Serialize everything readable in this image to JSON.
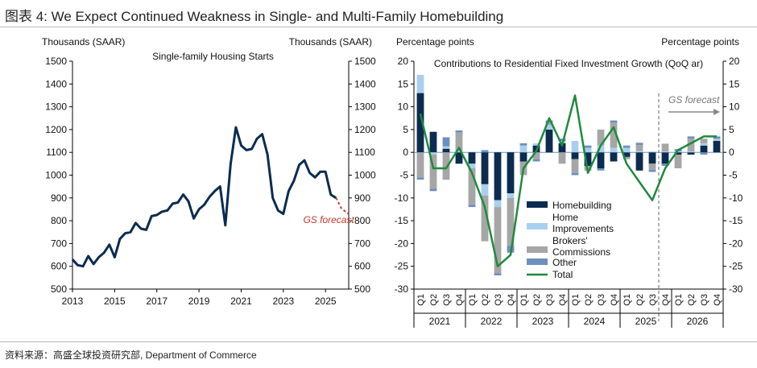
{
  "page": {
    "title": "图表 4: We Expect Continued Weakness in Single- and Multi-Family Homebuilding",
    "source": "资料来源：高盛全球投资研究部, Department of Commerce"
  },
  "chart_data": [
    {
      "type": "line",
      "title": "Single-family Housing Starts",
      "ylabel_left": "Thousands (SAAR)",
      "ylabel_right": "Thousands (SAAR)",
      "ylim": [
        500,
        1500
      ],
      "yticks": [
        "500",
        "600",
        "700",
        "800",
        "900",
        "1000",
        "1100",
        "1200",
        "1300",
        "1400",
        "1500"
      ],
      "xlim": [
        2013,
        2026.1
      ],
      "xticks": [
        "2013",
        "2015",
        "2017",
        "2019",
        "2021",
        "2023",
        "2025"
      ],
      "grid": false,
      "series": [
        {
          "name": "Single-family Housing Starts",
          "color": "#0b2c4f",
          "x": [
            2013,
            2013.25,
            2013.5,
            2013.75,
            2014,
            2014.25,
            2014.5,
            2014.75,
            2015,
            2015.25,
            2015.5,
            2015.75,
            2016,
            2016.25,
            2016.5,
            2016.75,
            2017,
            2017.25,
            2017.5,
            2017.75,
            2018,
            2018.25,
            2018.5,
            2018.75,
            2019,
            2019.25,
            2019.5,
            2019.75,
            2020,
            2020.25,
            2020.5,
            2020.75,
            2021,
            2021.25,
            2021.5,
            2021.75,
            2022,
            2022.25,
            2022.5,
            2022.75,
            2023,
            2023.25,
            2023.5,
            2023.75,
            2024,
            2024.25,
            2024.5,
            2024.75,
            2025,
            2025.25,
            2025.5
          ],
          "values": [
            630,
            605,
            600,
            645,
            610,
            640,
            660,
            695,
            640,
            720,
            745,
            750,
            790,
            765,
            760,
            820,
            825,
            840,
            845,
            875,
            880,
            915,
            885,
            810,
            850,
            870,
            905,
            930,
            950,
            780,
            1050,
            1210,
            1130,
            1110,
            1115,
            1160,
            1180,
            1090,
            900,
            845,
            830,
            930,
            975,
            1045,
            1065,
            1010,
            990,
            1015,
            1015,
            915,
            900
          ]
        },
        {
          "name": "GS forecast",
          "color": "#c0392b",
          "dashed": true,
          "x": [
            2025.5,
            2025.75,
            2026,
            2026.1
          ],
          "values": [
            900,
            855,
            835,
            830
          ]
        }
      ],
      "annotations": [
        "GS forecast"
      ]
    },
    {
      "type": "stacked-bar",
      "title": "Contributions to Residential Fixed Investment Growth (QoQ ar)",
      "ylabel_left": "Percentage points",
      "ylabel_right": "Percentage points",
      "ylim": [
        -30,
        20
      ],
      "yticks": [
        "-30",
        "-25",
        "-20",
        "-15",
        "-10",
        "-5",
        "0",
        "5",
        "10",
        "15",
        "20"
      ],
      "quarter_labels": [
        "Q1",
        "Q2",
        "Q3",
        "Q4"
      ],
      "year_labels": [
        "2021",
        "2022",
        "2023",
        "2024",
        "2025",
        "2026"
      ],
      "forecast_label": "GS forecast",
      "legend": {
        "placement": "bottom-center",
        "items": [
          {
            "key": "homebuilding",
            "label": "Homebuilding",
            "color": "#0b2c4f",
            "type": "bar"
          },
          {
            "key": "improvements",
            "label_lines": [
              "Home",
              "Improvements"
            ],
            "color": "#a9cfee",
            "type": "bar"
          },
          {
            "key": "brokers",
            "label_lines": [
              "Brokers'",
              "Commissions"
            ],
            "color": "#a6a6a6",
            "type": "bar"
          },
          {
            "key": "other",
            "label": "Other",
            "color": "#6d8fbf",
            "type": "bar"
          },
          {
            "key": "total",
            "label": "Total",
            "color": "#1f8a3e",
            "type": "line"
          }
        ]
      },
      "series": [
        {
          "name": "Homebuilding",
          "values": [
            13,
            4.5,
            0.8,
            -2.5,
            -2.5,
            -7,
            -10.5,
            -9,
            -2,
            1.5,
            5,
            2,
            -1.5,
            -3,
            -3.5,
            -2,
            -1,
            -4,
            -2.5,
            -2.5,
            -0.5,
            -0.5,
            1.5,
            2.5
          ]
        },
        {
          "name": "Home Improvements",
          "values": [
            4,
            -0.5,
            0.5,
            0.3,
            -1,
            -2.5,
            -1.5,
            -1,
            1.5,
            0.5,
            1,
            0.5,
            2.5,
            1,
            1.5,
            1,
            1,
            0.3,
            0.2,
            0.2,
            0.2,
            0.2,
            0.5,
            0.5
          ]
        },
        {
          "name": "Brokers' Commissions",
          "values": [
            -5.5,
            -7.5,
            -6,
            4,
            -8,
            -10,
            -14.5,
            -10.5,
            -3,
            -1.5,
            0.5,
            -2.5,
            -3,
            -1,
            3.5,
            5.5,
            -0.5,
            1.3,
            -1.3,
            1.7,
            -3,
            2.8,
            1,
            0
          ]
        },
        {
          "name": "Other",
          "values": [
            -0.5,
            -0.5,
            2,
            0.5,
            -0.5,
            0.5,
            -0.5,
            -1.5,
            0.5,
            -0.5,
            0.5,
            0.5,
            -0.5,
            0.5,
            -0.5,
            0.5,
            0.5,
            0.5,
            -0.5,
            -0.5,
            0.5,
            0.5,
            -0.5,
            0.5
          ]
        },
        {
          "name": "Total",
          "values": [
            8.5,
            -3.5,
            -3.5,
            1,
            -4.5,
            -12,
            -25,
            -22.5,
            -3.5,
            0.3,
            7.5,
            1.5,
            12.5,
            -4.5,
            1.5,
            5.5,
            -2.5,
            -6.5,
            -10.5,
            -3.5,
            0.5,
            2,
            3.5,
            3.5
          ]
        }
      ]
    }
  ]
}
